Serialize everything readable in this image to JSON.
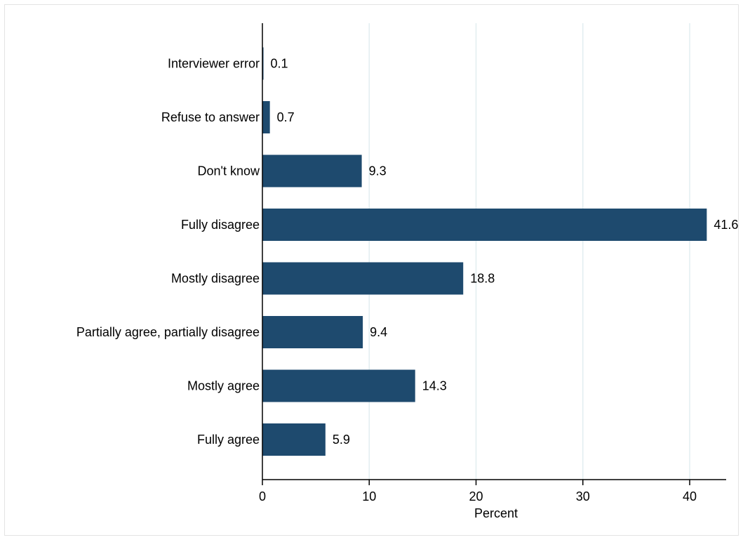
{
  "chart_data": {
    "type": "bar",
    "orientation": "horizontal",
    "categories": [
      "Interviewer error",
      "Refuse to answer",
      "Don't know",
      "Fully disagree",
      "Mostly disagree",
      "Partially agree, partially disagree",
      "Mostly agree",
      "Fully agree"
    ],
    "values": [
      0.1,
      0.7,
      9.3,
      41.6,
      18.8,
      9.4,
      14.3,
      5.9
    ],
    "data_labels": [
      "0.1",
      "0.7",
      "9.3",
      "41.6",
      "18.8",
      "9.4",
      "14.3",
      "5.9"
    ],
    "xlabel": "Percent",
    "ylabel": "",
    "xlim": [
      0,
      43
    ],
    "xticks": [
      0,
      10,
      20,
      30,
      40
    ],
    "xtick_labels": [
      "0",
      "10",
      "20",
      "30",
      "40"
    ],
    "grid": "vertical",
    "colors": {
      "bar": "#1e4a6e",
      "grid": "#e2eef0",
      "axis": "#000000",
      "frame": "#e4e4e4"
    }
  }
}
